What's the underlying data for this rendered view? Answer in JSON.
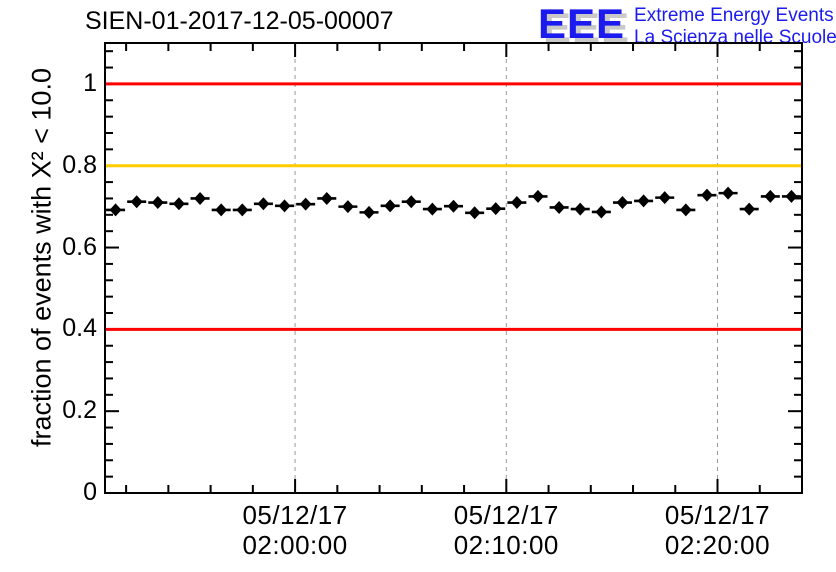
{
  "header": {
    "title": "SIEN-01-2017-12-05-00007",
    "logo": {
      "acronym": "EEE",
      "line1": "Extreme Energy Events",
      "line2": "La Scienza nelle Scuole",
      "blue": "#1b1bf0",
      "shadow": "#c9c9c9"
    }
  },
  "chart_data": {
    "type": "scatter",
    "title": "SIEN-01-2017-12-05-00007",
    "xlabel": "",
    "ylabel": "fraction of events with X² < 10.0",
    "ylim": [
      0,
      1.1
    ],
    "x_range_minutes": 33,
    "x_range": [
      "05/12/17 01:51:00",
      "05/12/17 02:24:00"
    ],
    "grid": "vertical-dashed-at-major-x",
    "legend": "none",
    "grid_color": "#9a9a9a",
    "axis_color": "#000000",
    "marker": "filled-diamond-with-horizontal-error-bars",
    "marker_color": "#000000",
    "x_bin_width_minutes": 1,
    "y_major_ticks": [
      {
        "v": 0.0,
        "label": "0"
      },
      {
        "v": 0.2,
        "label": "0.2"
      },
      {
        "v": 0.4,
        "label": "0.4"
      },
      {
        "v": 0.6,
        "label": "0.6"
      },
      {
        "v": 0.8,
        "label": "0.8"
      },
      {
        "v": 1.0,
        "label": "1"
      }
    ],
    "y_minor_step": 0.04,
    "x_major_ticks": [
      {
        "m": 9,
        "date": "05/12/17",
        "time": "02:00:00"
      },
      {
        "m": 19,
        "date": "05/12/17",
        "time": "02:10:00"
      },
      {
        "m": 29,
        "date": "05/12/17",
        "time": "02:20:00"
      }
    ],
    "x_minor_step_minutes": 2,
    "threshold_lines": [
      {
        "y": 1.0,
        "color": "#ff0000",
        "name": "upper-red-limit"
      },
      {
        "y": 0.8,
        "color": "#ffcc00",
        "name": "orange-warning-level"
      },
      {
        "y": 0.4,
        "color": "#ff0000",
        "name": "lower-red-limit"
      }
    ],
    "series": [
      {
        "name": "fraction of events with X2 < 10.0 vs time",
        "points": [
          {
            "m": 0.5,
            "time": "05/12/17 01:51:30",
            "y": 0.692
          },
          {
            "m": 1.5,
            "time": "05/12/17 01:52:30",
            "y": 0.712
          },
          {
            "m": 2.5,
            "time": "05/12/17 01:53:30",
            "y": 0.71
          },
          {
            "m": 3.5,
            "time": "05/12/17 01:54:30",
            "y": 0.707
          },
          {
            "m": 4.5,
            "time": "05/12/17 01:55:30",
            "y": 0.72
          },
          {
            "m": 5.5,
            "time": "05/12/17 01:56:30",
            "y": 0.692
          },
          {
            "m": 6.5,
            "time": "05/12/17 01:57:30",
            "y": 0.692
          },
          {
            "m": 7.5,
            "time": "05/12/17 01:58:30",
            "y": 0.707
          },
          {
            "m": 8.5,
            "time": "05/12/17 01:59:30",
            "y": 0.702
          },
          {
            "m": 9.5,
            "time": "05/12/17 02:00:30",
            "y": 0.706
          },
          {
            "m": 10.5,
            "time": "05/12/17 02:01:30",
            "y": 0.72
          },
          {
            "m": 11.5,
            "time": "05/12/17 02:02:30",
            "y": 0.7
          },
          {
            "m": 12.5,
            "time": "05/12/17 02:03:30",
            "y": 0.686
          },
          {
            "m": 13.5,
            "time": "05/12/17 02:04:30",
            "y": 0.702
          },
          {
            "m": 14.5,
            "time": "05/12/17 02:05:30",
            "y": 0.712
          },
          {
            "m": 15.5,
            "time": "05/12/17 02:06:30",
            "y": 0.694
          },
          {
            "m": 16.5,
            "time": "05/12/17 02:07:30",
            "y": 0.701
          },
          {
            "m": 17.5,
            "time": "05/12/17 02:08:30",
            "y": 0.685
          },
          {
            "m": 18.5,
            "time": "05/12/17 02:09:30",
            "y": 0.695
          },
          {
            "m": 19.5,
            "time": "05/12/17 02:10:30",
            "y": 0.71
          },
          {
            "m": 20.5,
            "time": "05/12/17 02:11:30",
            "y": 0.725
          },
          {
            "m": 21.5,
            "time": "05/12/17 02:12:30",
            "y": 0.698
          },
          {
            "m": 22.5,
            "time": "05/12/17 02:13:30",
            "y": 0.694
          },
          {
            "m": 23.5,
            "time": "05/12/17 02:14:30",
            "y": 0.687
          },
          {
            "m": 24.5,
            "time": "05/12/17 02:15:30",
            "y": 0.71
          },
          {
            "m": 25.5,
            "time": "05/12/17 02:16:30",
            "y": 0.714
          },
          {
            "m": 26.5,
            "time": "05/12/17 02:17:30",
            "y": 0.722
          },
          {
            "m": 27.5,
            "time": "05/12/17 02:18:30",
            "y": 0.692
          },
          {
            "m": 28.5,
            "time": "05/12/17 02:19:30",
            "y": 0.728
          },
          {
            "m": 29.5,
            "time": "05/12/17 02:20:30",
            "y": 0.733
          },
          {
            "m": 30.5,
            "time": "05/12/17 02:21:30",
            "y": 0.694
          },
          {
            "m": 31.5,
            "time": "05/12/17 02:22:30",
            "y": 0.725
          },
          {
            "m": 32.5,
            "time": "05/12/17 02:23:30",
            "y": 0.725
          }
        ]
      }
    ]
  }
}
